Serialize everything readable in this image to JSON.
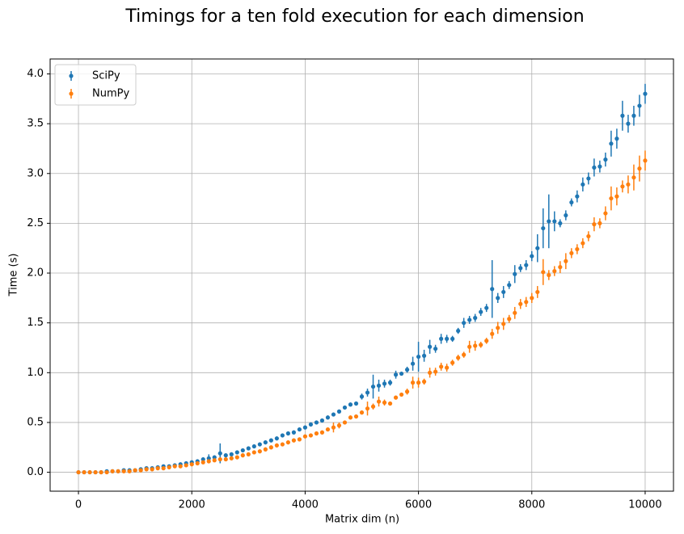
{
  "chart_data": {
    "type": "errorbar",
    "title": "Timings for a ten fold execution for each dimension",
    "xlabel": "Matrix dim (n)",
    "ylabel": "Time (s)",
    "x": [
      0,
      100,
      200,
      300,
      400,
      500,
      600,
      700,
      800,
      900,
      1000,
      1100,
      1200,
      1300,
      1400,
      1500,
      1600,
      1700,
      1800,
      1900,
      2000,
      2100,
      2200,
      2300,
      2400,
      2500,
      2600,
      2700,
      2800,
      2900,
      3000,
      3100,
      3200,
      3300,
      3400,
      3500,
      3600,
      3700,
      3800,
      3900,
      4000,
      4100,
      4200,
      4300,
      4400,
      4500,
      4600,
      4700,
      4800,
      4900,
      5000,
      5100,
      5200,
      5300,
      5400,
      5500,
      5600,
      5700,
      5800,
      5900,
      6000,
      6100,
      6200,
      6300,
      6400,
      6500,
      6600,
      6700,
      6800,
      6900,
      7000,
      7100,
      7200,
      7300,
      7400,
      7500,
      7600,
      7700,
      7800,
      7900,
      8000,
      8100,
      8200,
      8300,
      8400,
      8500,
      8600,
      8700,
      8800,
      8900,
      9000,
      9100,
      9200,
      9300,
      9400,
      9500,
      9600,
      9700,
      9800,
      9900,
      10000
    ],
    "series": [
      {
        "name": "SciPy",
        "color": "#1f77b4",
        "values": [
          0.0,
          0.0,
          0.0,
          0.0,
          0.0,
          0.01,
          0.01,
          0.01,
          0.02,
          0.02,
          0.02,
          0.03,
          0.04,
          0.04,
          0.05,
          0.06,
          0.06,
          0.07,
          0.08,
          0.09,
          0.1,
          0.11,
          0.13,
          0.14,
          0.15,
          0.19,
          0.17,
          0.18,
          0.2,
          0.22,
          0.24,
          0.26,
          0.28,
          0.3,
          0.32,
          0.34,
          0.37,
          0.39,
          0.4,
          0.43,
          0.45,
          0.48,
          0.5,
          0.52,
          0.55,
          0.58,
          0.61,
          0.65,
          0.68,
          0.69,
          0.76,
          0.8,
          0.86,
          0.87,
          0.89,
          0.9,
          0.98,
          0.99,
          1.03,
          1.09,
          1.16,
          1.17,
          1.26,
          1.24,
          1.34,
          1.34,
          1.34,
          1.42,
          1.5,
          1.53,
          1.55,
          1.61,
          1.65,
          1.84,
          1.75,
          1.81,
          1.88,
          1.99,
          2.05,
          2.08,
          2.17,
          2.25,
          2.45,
          2.52,
          2.52,
          2.5,
          2.58,
          2.71,
          2.77,
          2.89,
          2.95,
          3.06,
          3.07,
          3.14,
          3.3,
          3.35,
          3.58,
          3.5,
          3.58,
          3.68,
          3.8
        ],
        "errors": [
          0.005,
          0.005,
          0.005,
          0.005,
          0.005,
          0.005,
          0.005,
          0.005,
          0.005,
          0.005,
          0.005,
          0.005,
          0.005,
          0.005,
          0.01,
          0.01,
          0.01,
          0.01,
          0.01,
          0.01,
          0.01,
          0.02,
          0.02,
          0.04,
          0.02,
          0.1,
          0.02,
          0.02,
          0.02,
          0.02,
          0.02,
          0.02,
          0.02,
          0.02,
          0.02,
          0.02,
          0.02,
          0.02,
          0.02,
          0.02,
          0.02,
          0.02,
          0.02,
          0.02,
          0.02,
          0.02,
          0.02,
          0.02,
          0.02,
          0.02,
          0.03,
          0.04,
          0.12,
          0.06,
          0.04,
          0.03,
          0.04,
          0.02,
          0.03,
          0.07,
          0.15,
          0.06,
          0.07,
          0.04,
          0.05,
          0.04,
          0.03,
          0.03,
          0.05,
          0.04,
          0.04,
          0.04,
          0.04,
          0.29,
          0.05,
          0.06,
          0.04,
          0.09,
          0.04,
          0.05,
          0.05,
          0.14,
          0.2,
          0.27,
          0.1,
          0.04,
          0.05,
          0.04,
          0.06,
          0.07,
          0.06,
          0.09,
          0.06,
          0.07,
          0.13,
          0.1,
          0.15,
          0.09,
          0.1,
          0.11,
          0.1
        ]
      },
      {
        "name": "NumPy",
        "color": "#ff7f0e",
        "values": [
          0.0,
          0.0,
          0.0,
          0.0,
          0.0,
          0.0,
          0.01,
          0.01,
          0.01,
          0.01,
          0.02,
          0.02,
          0.03,
          0.03,
          0.04,
          0.04,
          0.05,
          0.06,
          0.06,
          0.07,
          0.08,
          0.09,
          0.1,
          0.11,
          0.12,
          0.13,
          0.13,
          0.14,
          0.15,
          0.17,
          0.18,
          0.2,
          0.21,
          0.23,
          0.25,
          0.27,
          0.28,
          0.3,
          0.32,
          0.33,
          0.36,
          0.37,
          0.39,
          0.4,
          0.43,
          0.45,
          0.47,
          0.5,
          0.55,
          0.56,
          0.6,
          0.64,
          0.66,
          0.71,
          0.7,
          0.69,
          0.75,
          0.78,
          0.81,
          0.9,
          0.9,
          0.91,
          1.0,
          1.01,
          1.06,
          1.05,
          1.1,
          1.15,
          1.18,
          1.26,
          1.27,
          1.28,
          1.32,
          1.39,
          1.45,
          1.49,
          1.54,
          1.6,
          1.69,
          1.71,
          1.75,
          1.81,
          2.01,
          1.98,
          2.02,
          2.06,
          2.12,
          2.2,
          2.24,
          2.3,
          2.37,
          2.49,
          2.5,
          2.6,
          2.75,
          2.77,
          2.87,
          2.89,
          2.96,
          3.05,
          3.13
        ],
        "errors": [
          0.005,
          0.005,
          0.005,
          0.005,
          0.005,
          0.005,
          0.005,
          0.005,
          0.005,
          0.005,
          0.005,
          0.005,
          0.005,
          0.005,
          0.005,
          0.01,
          0.01,
          0.01,
          0.01,
          0.01,
          0.01,
          0.01,
          0.01,
          0.02,
          0.01,
          0.02,
          0.02,
          0.02,
          0.02,
          0.02,
          0.02,
          0.02,
          0.02,
          0.02,
          0.02,
          0.02,
          0.02,
          0.02,
          0.02,
          0.02,
          0.02,
          0.02,
          0.02,
          0.02,
          0.02,
          0.05,
          0.03,
          0.02,
          0.02,
          0.02,
          0.02,
          0.07,
          0.03,
          0.05,
          0.03,
          0.02,
          0.02,
          0.02,
          0.03,
          0.06,
          0.05,
          0.03,
          0.05,
          0.04,
          0.04,
          0.04,
          0.03,
          0.03,
          0.03,
          0.06,
          0.05,
          0.03,
          0.03,
          0.05,
          0.06,
          0.06,
          0.04,
          0.06,
          0.05,
          0.05,
          0.05,
          0.06,
          0.13,
          0.05,
          0.05,
          0.06,
          0.08,
          0.05,
          0.05,
          0.05,
          0.05,
          0.07,
          0.05,
          0.07,
          0.12,
          0.09,
          0.06,
          0.09,
          0.13,
          0.13,
          0.1
        ]
      }
    ],
    "xlim": [
      -500,
      10500
    ],
    "ylim": [
      -0.19,
      4.15
    ],
    "xticks": [
      0,
      2000,
      4000,
      6000,
      8000,
      10000
    ],
    "yticks": [
      {
        "value": 0,
        "label": "0.0"
      },
      0.5,
      {
        "value": 1,
        "label": "1.0"
      },
      1.5,
      {
        "value": 2,
        "label": "2.0"
      },
      2.5,
      {
        "value": 3,
        "label": "3.0"
      },
      3.5,
      {
        "value": 4,
        "label": "4.0"
      }
    ],
    "grid": true,
    "legend": "upper left"
  }
}
